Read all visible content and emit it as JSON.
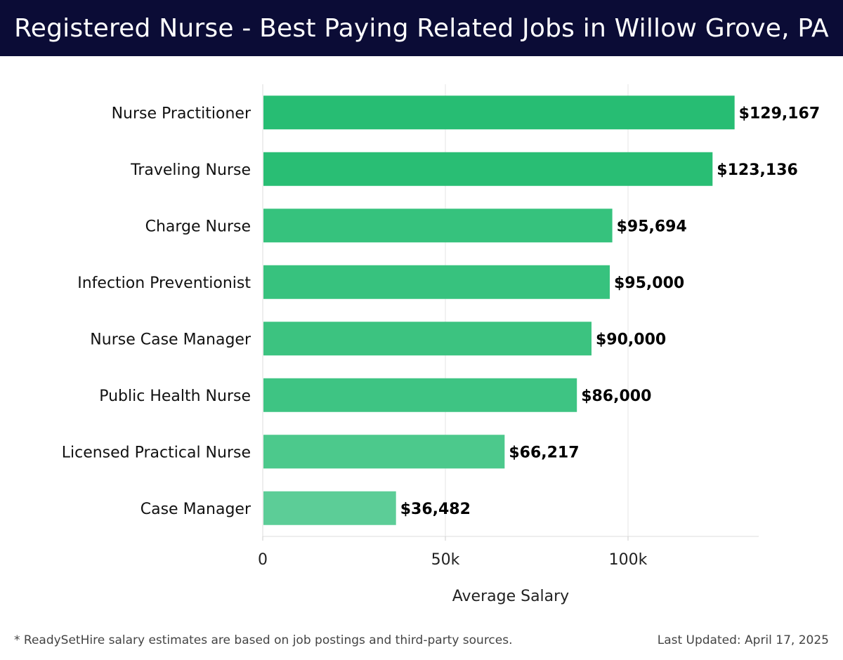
{
  "chart_data": {
    "type": "bar",
    "orientation": "horizontal",
    "title": "Registered Nurse - Best Paying Related Jobs in Willow Grove, PA",
    "categories": [
      "Nurse Practitioner",
      "Traveling Nurse",
      "Charge Nurse",
      "Infection Preventionist",
      "Nurse Case Manager",
      "Public Health Nurse",
      "Licensed Practical Nurse",
      "Case Manager"
    ],
    "values": [
      129167,
      123136,
      95694,
      95000,
      90000,
      86000,
      66217,
      36482
    ],
    "value_labels": [
      "$129,167",
      "$123,136",
      "$95,694",
      "$95,000",
      "$90,000",
      "$86,000",
      "$66,217",
      "$36,482"
    ],
    "bar_colors": [
      "#27bd73",
      "#29be74",
      "#36c27d",
      "#37c27e",
      "#3cc380",
      "#3ec483",
      "#4cc98c",
      "#5ccd97"
    ],
    "xlabel": "Average Salary",
    "ylabel": "",
    "xlim": [
      0,
      136000
    ],
    "xticks": [
      0,
      50000,
      100000
    ],
    "xtick_labels": [
      "0",
      "50k",
      "100k"
    ],
    "grid": true
  },
  "footer": {
    "note": "* ReadySetHire salary estimates are based on job postings and third-party sources.",
    "updated": "Last Updated: April 17, 2025"
  }
}
